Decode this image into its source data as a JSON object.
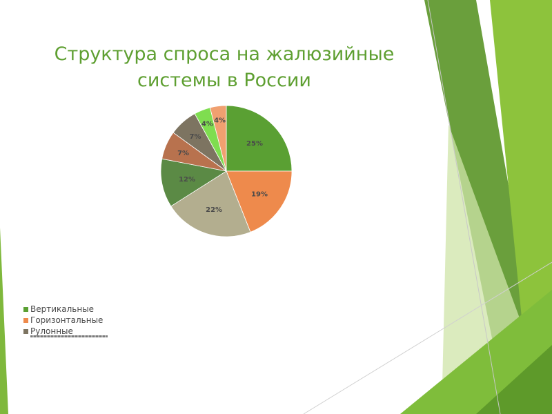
{
  "slide": {
    "title_line1": "Структура спроса на жалюзийные",
    "title_line2": "системы в России"
  },
  "chart_data": {
    "type": "pie",
    "title": "Структура спроса на жалюзийные системы в России",
    "slices": [
      {
        "label": "Вертикальные",
        "value": 25,
        "display": "25%",
        "color": "#5aa033"
      },
      {
        "label": "Горизонтальные",
        "value": 19,
        "display": "19%",
        "color": "#ee8a4c"
      },
      {
        "label": "",
        "value": 22,
        "display": "22%",
        "color": "#b3ae8f"
      },
      {
        "label": "",
        "value": 12,
        "display": "12%",
        "color": "#5b8a45"
      },
      {
        "label": "",
        "value": 7,
        "display": "7%",
        "color": "#b8724e"
      },
      {
        "label": "Рулонные",
        "value": 7,
        "display": "7%",
        "color": "#7d7461"
      },
      {
        "label": "",
        "value": 4,
        "display": "4%",
        "color": "#7fdd50"
      },
      {
        "label": "",
        "value": 4,
        "display": "4%",
        "color": "#f0a070"
      }
    ],
    "legend": {
      "position": "bottom-left",
      "entries": [
        {
          "label": "Вертикальные",
          "color": "#5aa033"
        },
        {
          "label": "Горизонтальные",
          "color": "#ee8a4c"
        },
        {
          "label": "Рулонные",
          "color": "#7d7461"
        }
      ]
    },
    "label_color": "#4a4a4a"
  },
  "theme": {
    "accent_green": "#5e9f31"
  }
}
